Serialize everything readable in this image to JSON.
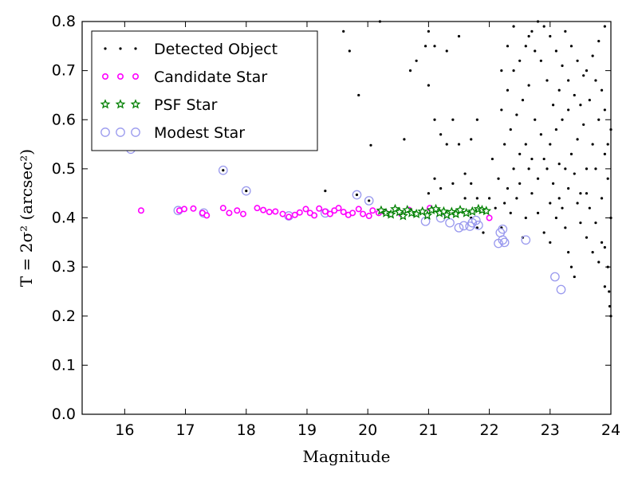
{
  "chart_data": {
    "type": "scatter",
    "xlabel": "Magnitude",
    "ylabel": "T = 2σ² (arcsec²)",
    "xlim": [
      15.3,
      24
    ],
    "ylim": [
      0.0,
      0.8
    ],
    "xticks": [
      "16",
      "17",
      "18",
      "19",
      "20",
      "21",
      "22",
      "23",
      "24"
    ],
    "yticks": [
      "0.0",
      "0.1",
      "0.2",
      "0.3",
      "0.4",
      "0.5",
      "0.6",
      "0.7",
      "0.8"
    ],
    "grid": false,
    "legend_position": "top-left",
    "series": [
      {
        "name": "Detected Object",
        "marker": "dot",
        "color": "#000000",
        "points": [
          [
            16.1,
            0.54
          ],
          [
            17.62,
            0.497
          ],
          [
            18.0,
            0.455
          ],
          [
            19.82,
            0.447
          ],
          [
            20.02,
            0.435
          ],
          [
            19.3,
            0.455
          ],
          [
            19.85,
            0.65
          ],
          [
            20.05,
            0.548
          ],
          [
            19.6,
            0.78
          ],
          [
            20.2,
            0.8
          ],
          [
            19.7,
            0.74
          ],
          [
            20.8,
            0.72
          ],
          [
            20.7,
            0.7
          ],
          [
            21.0,
            0.67
          ],
          [
            21.1,
            0.6
          ],
          [
            21.2,
            0.57
          ],
          [
            20.6,
            0.56
          ],
          [
            21.7,
            0.56
          ],
          [
            21.5,
            0.55
          ],
          [
            21.3,
            0.55
          ],
          [
            21.8,
            0.6
          ],
          [
            21.5,
            0.77
          ],
          [
            21.3,
            0.74
          ],
          [
            21.0,
            0.78
          ],
          [
            21.1,
            0.75
          ],
          [
            20.95,
            0.75
          ],
          [
            21.4,
            0.6
          ],
          [
            21.6,
            0.49
          ],
          [
            21.7,
            0.47
          ],
          [
            21.6,
            0.44
          ],
          [
            21.8,
            0.44
          ],
          [
            22.0,
            0.44
          ],
          [
            21.4,
            0.47
          ],
          [
            21.2,
            0.46
          ],
          [
            21.0,
            0.45
          ],
          [
            21.1,
            0.48
          ],
          [
            21.8,
            0.38
          ],
          [
            21.9,
            0.37
          ],
          [
            21.7,
            0.4
          ],
          [
            22.2,
            0.38
          ],
          [
            22.1,
            0.42
          ],
          [
            22.3,
            0.46
          ],
          [
            22.4,
            0.5
          ],
          [
            22.5,
            0.53
          ],
          [
            22.55,
            0.36
          ],
          [
            22.6,
            0.4
          ],
          [
            22.7,
            0.45
          ],
          [
            22.8,
            0.48
          ],
          [
            22.9,
            0.52
          ],
          [
            23.0,
            0.55
          ],
          [
            23.1,
            0.58
          ],
          [
            23.2,
            0.42
          ],
          [
            23.25,
            0.38
          ],
          [
            23.3,
            0.33
          ],
          [
            23.35,
            0.3
          ],
          [
            23.4,
            0.28
          ],
          [
            23.5,
            0.45
          ],
          [
            23.6,
            0.5
          ],
          [
            23.7,
            0.55
          ],
          [
            23.8,
            0.6
          ],
          [
            23.9,
            0.62
          ],
          [
            23.95,
            0.3
          ],
          [
            23.97,
            0.25
          ],
          [
            23.98,
            0.22
          ],
          [
            24.0,
            0.2
          ],
          [
            23.9,
            0.26
          ],
          [
            23.85,
            0.35
          ],
          [
            22.2,
            0.62
          ],
          [
            22.3,
            0.66
          ],
          [
            22.4,
            0.7
          ],
          [
            22.5,
            0.72
          ],
          [
            22.6,
            0.75
          ],
          [
            22.7,
            0.78
          ],
          [
            22.8,
            0.8
          ],
          [
            22.9,
            0.79
          ],
          [
            23.0,
            0.77
          ],
          [
            23.1,
            0.74
          ],
          [
            23.2,
            0.71
          ],
          [
            23.3,
            0.68
          ],
          [
            23.4,
            0.65
          ],
          [
            23.5,
            0.63
          ],
          [
            23.6,
            0.7
          ],
          [
            23.7,
            0.73
          ],
          [
            23.8,
            0.76
          ],
          [
            23.9,
            0.79
          ],
          [
            22.25,
            0.55
          ],
          [
            22.35,
            0.58
          ],
          [
            22.45,
            0.61
          ],
          [
            22.55,
            0.64
          ],
          [
            22.65,
            0.67
          ],
          [
            22.75,
            0.6
          ],
          [
            22.85,
            0.57
          ],
          [
            22.95,
            0.5
          ],
          [
            23.05,
            0.47
          ],
          [
            23.15,
            0.44
          ],
          [
            23.25,
            0.5
          ],
          [
            23.35,
            0.53
          ],
          [
            23.45,
            0.56
          ],
          [
            23.55,
            0.59
          ],
          [
            23.65,
            0.42
          ],
          [
            23.75,
            0.39
          ],
          [
            23.85,
            0.44
          ],
          [
            23.95,
            0.48
          ],
          [
            22.15,
            0.48
          ],
          [
            22.05,
            0.52
          ],
          [
            22.2,
            0.7
          ],
          [
            22.3,
            0.75
          ],
          [
            22.4,
            0.79
          ],
          [
            22.6,
            0.55
          ],
          [
            22.7,
            0.52
          ],
          [
            22.8,
            0.41
          ],
          [
            22.9,
            0.37
          ],
          [
            23.0,
            0.35
          ],
          [
            23.1,
            0.4
          ],
          [
            23.2,
            0.6
          ],
          [
            23.3,
            0.62
          ],
          [
            23.4,
            0.49
          ],
          [
            23.5,
            0.39
          ],
          [
            23.6,
            0.36
          ],
          [
            23.7,
            0.33
          ],
          [
            23.8,
            0.31
          ],
          [
            23.9,
            0.34
          ],
          [
            24.0,
            0.4
          ],
          [
            23.95,
            0.55
          ],
          [
            23.85,
            0.66
          ],
          [
            23.75,
            0.68
          ],
          [
            23.65,
            0.64
          ],
          [
            23.55,
            0.69
          ],
          [
            23.45,
            0.72
          ],
          [
            23.35,
            0.75
          ],
          [
            23.25,
            0.78
          ],
          [
            23.15,
            0.66
          ],
          [
            23.05,
            0.63
          ],
          [
            22.95,
            0.68
          ],
          [
            22.85,
            0.72
          ],
          [
            22.75,
            0.74
          ],
          [
            22.65,
            0.77
          ],
          [
            22.45,
            0.44
          ],
          [
            22.35,
            0.41
          ],
          [
            22.25,
            0.43
          ],
          [
            22.5,
            0.47
          ],
          [
            22.65,
            0.5
          ],
          [
            23.0,
            0.43
          ],
          [
            23.15,
            0.51
          ],
          [
            23.3,
            0.46
          ],
          [
            23.45,
            0.43
          ],
          [
            23.6,
            0.45
          ],
          [
            23.75,
            0.5
          ],
          [
            23.9,
            0.53
          ],
          [
            24.0,
            0.58
          ]
        ]
      },
      {
        "name": "Candidate Star",
        "marker": "circle",
        "color": "#ff00ff",
        "points": [
          [
            16.27,
            0.415
          ],
          [
            16.9,
            0.415
          ],
          [
            16.98,
            0.418
          ],
          [
            17.13,
            0.419
          ],
          [
            17.28,
            0.41
          ],
          [
            17.35,
            0.405
          ],
          [
            17.62,
            0.42
          ],
          [
            17.72,
            0.41
          ],
          [
            17.85,
            0.415
          ],
          [
            17.95,
            0.408
          ],
          [
            18.18,
            0.42
          ],
          [
            18.28,
            0.416
          ],
          [
            18.38,
            0.412
          ],
          [
            18.48,
            0.413
          ],
          [
            18.6,
            0.408
          ],
          [
            18.7,
            0.402
          ],
          [
            18.8,
            0.406
          ],
          [
            18.88,
            0.411
          ],
          [
            18.98,
            0.418
          ],
          [
            19.05,
            0.41
          ],
          [
            19.12,
            0.405
          ],
          [
            19.2,
            0.419
          ],
          [
            19.3,
            0.413
          ],
          [
            19.38,
            0.408
          ],
          [
            19.45,
            0.415
          ],
          [
            19.52,
            0.42
          ],
          [
            19.6,
            0.412
          ],
          [
            19.68,
            0.406
          ],
          [
            19.75,
            0.41
          ],
          [
            19.85,
            0.418
          ],
          [
            19.92,
            0.408
          ],
          [
            20.02,
            0.404
          ],
          [
            20.08,
            0.415
          ],
          [
            20.18,
            0.41
          ],
          [
            20.28,
            0.412
          ],
          [
            20.55,
            0.408
          ],
          [
            20.68,
            0.416
          ],
          [
            21.02,
            0.42
          ],
          [
            22.0,
            0.4
          ]
        ]
      },
      {
        "name": "PSF Star",
        "marker": "star",
        "color": "#008000",
        "points": [
          [
            20.22,
            0.415
          ],
          [
            20.3,
            0.41
          ],
          [
            20.38,
            0.407
          ],
          [
            20.45,
            0.418
          ],
          [
            20.52,
            0.412
          ],
          [
            20.58,
            0.404
          ],
          [
            20.65,
            0.416
          ],
          [
            20.72,
            0.41
          ],
          [
            20.8,
            0.408
          ],
          [
            20.9,
            0.413
          ],
          [
            20.98,
            0.405
          ],
          [
            21.05,
            0.416
          ],
          [
            21.12,
            0.418
          ],
          [
            21.18,
            0.41
          ],
          [
            21.25,
            0.413
          ],
          [
            21.3,
            0.406
          ],
          [
            21.38,
            0.412
          ],
          [
            21.45,
            0.408
          ],
          [
            21.52,
            0.416
          ],
          [
            21.62,
            0.41
          ],
          [
            21.72,
            0.413
          ],
          [
            21.82,
            0.418
          ],
          [
            21.88,
            0.416
          ],
          [
            21.95,
            0.414
          ]
        ]
      },
      {
        "name": "Modest Star",
        "marker": "open-circle",
        "color": "#9999ee",
        "points": [
          [
            16.1,
            0.54
          ],
          [
            16.88,
            0.415
          ],
          [
            17.62,
            0.497
          ],
          [
            18.0,
            0.455
          ],
          [
            17.3,
            0.41
          ],
          [
            18.7,
            0.404
          ],
          [
            19.3,
            0.41
          ],
          [
            19.82,
            0.447
          ],
          [
            20.02,
            0.435
          ],
          [
            20.95,
            0.393
          ],
          [
            21.2,
            0.4
          ],
          [
            21.35,
            0.39
          ],
          [
            21.5,
            0.38
          ],
          [
            21.58,
            0.384
          ],
          [
            21.68,
            0.383
          ],
          [
            21.72,
            0.39
          ],
          [
            21.82,
            0.385
          ],
          [
            22.18,
            0.37
          ],
          [
            22.22,
            0.355
          ],
          [
            22.15,
            0.348
          ],
          [
            22.25,
            0.35
          ],
          [
            22.6,
            0.355
          ],
          [
            23.08,
            0.28
          ],
          [
            23.18,
            0.254
          ],
          [
            22.22,
            0.377
          ],
          [
            21.78,
            0.395
          ]
        ]
      }
    ]
  }
}
